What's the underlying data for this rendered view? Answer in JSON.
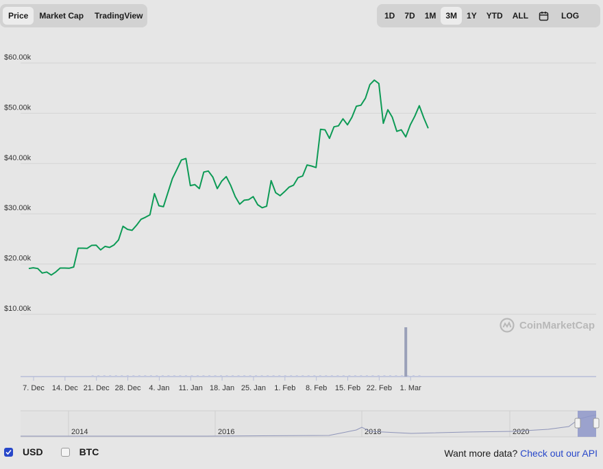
{
  "tabs_left": [
    {
      "label": "Price",
      "active": true
    },
    {
      "label": "Market Cap",
      "active": false
    },
    {
      "label": "TradingView",
      "active": false
    }
  ],
  "ranges": [
    {
      "label": "1D",
      "active": false
    },
    {
      "label": "7D",
      "active": false
    },
    {
      "label": "1M",
      "active": false
    },
    {
      "label": "3M",
      "active": true
    },
    {
      "label": "1Y",
      "active": false
    },
    {
      "label": "YTD",
      "active": false
    },
    {
      "label": "ALL",
      "active": false
    }
  ],
  "log_label": "LOG",
  "watermark": "CoinMarketCap",
  "footer": {
    "usd_label": "USD",
    "btc_label": "BTC",
    "more_text": "Want more data?",
    "link_text": "Check out our API"
  },
  "colors": {
    "line": "#0c9a55",
    "grid": "#d3d3d3",
    "accent": "#2747c9",
    "navigator": "#8e96c9"
  },
  "chart_data": {
    "type": "line",
    "title": "",
    "xlabel": "",
    "ylabel": "",
    "ylim": [
      0,
      63000
    ],
    "y_ticks": [
      "$10.00k",
      "$20.00k",
      "$30.00k",
      "$40.00k",
      "$50.00k",
      "$60.00k"
    ],
    "y_tick_values": [
      10000,
      20000,
      30000,
      40000,
      50000,
      60000
    ],
    "x_ticks": [
      "7. Dec",
      "14. Dec",
      "21. Dec",
      "28. Dec",
      "4. Jan",
      "11. Jan",
      "18. Jan",
      "25. Jan",
      "1. Feb",
      "8. Feb",
      "15. Feb",
      "22. Feb",
      "1. Mar"
    ],
    "x_tick_days": [
      0,
      7,
      14,
      21,
      28,
      35,
      42,
      49,
      56,
      63,
      70,
      77,
      84
    ],
    "grid": true,
    "series": [
      {
        "values": [
          19100,
          19250,
          19100,
          18200,
          18400,
          17800,
          18400,
          19200,
          19200,
          19150,
          19400,
          23150,
          23150,
          23100,
          23700,
          23750,
          22800,
          23500,
          23300,
          23800,
          24800,
          27500,
          26900,
          26700,
          27700,
          28900,
          29300,
          29800,
          34000,
          31600,
          31400,
          34200,
          37000,
          38800,
          40700,
          41000,
          35600,
          35800,
          35000,
          38300,
          38500,
          37300,
          35000,
          36500,
          37400,
          35600,
          33400,
          31900,
          32700,
          32800,
          33400,
          31800,
          31200,
          31500,
          36600,
          34200,
          33600,
          34400,
          35300,
          35700,
          37200,
          37500,
          39700,
          39500,
          39200,
          46800,
          46700,
          45000,
          47300,
          47500,
          48900,
          47700,
          49200,
          51400,
          51600,
          53000,
          55700,
          56600,
          55900,
          48000,
          50700,
          49200,
          46400,
          46700,
          45300,
          47700,
          49400,
          51500,
          49100,
          47000
        ]
      }
    ],
    "navigator": {
      "labels": [
        "2014",
        "2016",
        "2018",
        "2020"
      ]
    },
    "volume_spike": {
      "day": 84
    }
  }
}
